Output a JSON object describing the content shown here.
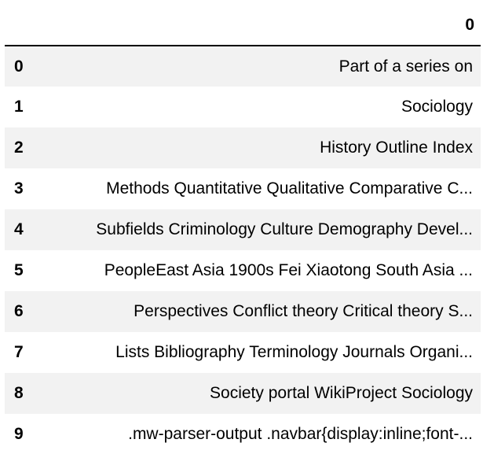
{
  "table": {
    "column_header": "0",
    "index_header": "",
    "rows": [
      {
        "index": "0",
        "value": "Part of a series on"
      },
      {
        "index": "1",
        "value": "Sociology"
      },
      {
        "index": "2",
        "value": "History Outline Index"
      },
      {
        "index": "3",
        "value": "Methods Quantitative Qualitative Comparative C..."
      },
      {
        "index": "4",
        "value": "Subfields Criminology Culture Demography Devel..."
      },
      {
        "index": "5",
        "value": "PeopleEast Asia 1900s Fei Xiaotong South Asia ..."
      },
      {
        "index": "6",
        "value": "Perspectives Conflict theory Critical theory S..."
      },
      {
        "index": "7",
        "value": "Lists Bibliography Terminology Journals Organi..."
      },
      {
        "index": "8",
        "value": "Society portal WikiProject Sociology"
      },
      {
        "index": "9",
        "value": ".mw-parser-output .navbar{display:inline;font-..."
      }
    ]
  },
  "colors": {
    "stripe": "#f2f2f2",
    "header_rule": "#000000"
  }
}
